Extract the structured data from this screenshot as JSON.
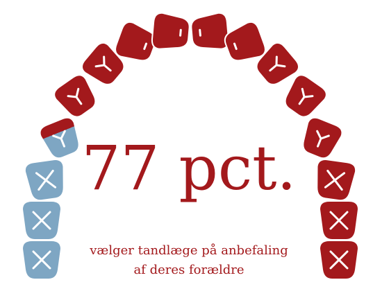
{
  "chart_data": {
    "type": "pictogram",
    "value": 77,
    "value_label": "77 pct.",
    "subtitle": [
      "vælger tandlæge på anbefaling",
      "af deres forældre"
    ],
    "color": "#a3191c",
    "rest_color": "#7ea6c3"
  }
}
